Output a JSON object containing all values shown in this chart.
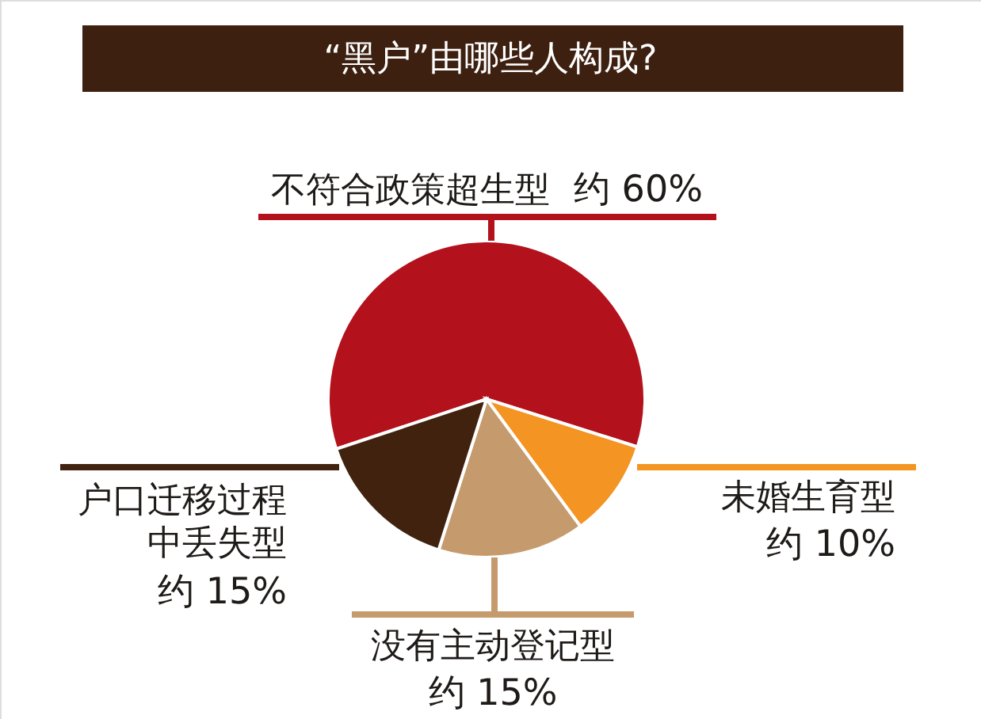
{
  "chart_data": {
    "type": "pie",
    "title": "“黑户”由哪些人构成?",
    "categories": [
      "不符合政策超生型",
      "未婚生育型",
      "没有主动登记型",
      "户口迁移过程中丢失型"
    ],
    "values": [
      60,
      10,
      15,
      15
    ],
    "colors": [
      "#b3121d",
      "#f39423",
      "#c59b6d",
      "#40220f"
    ],
    "value_labels": [
      "约 60%",
      "约 10%",
      "约 15%",
      "约 15%"
    ]
  }
}
